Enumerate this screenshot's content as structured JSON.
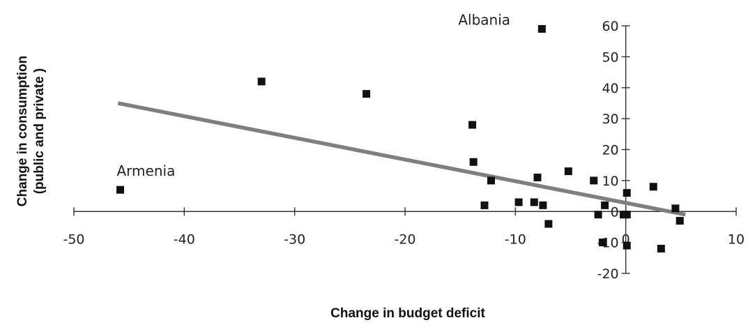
{
  "chart_data": {
    "type": "scatter",
    "xlabel": "Change in budget deficit",
    "ylabel_lines": [
      "Change in consumption",
      "(public and private )"
    ],
    "xlim": [
      -50,
      10
    ],
    "ylim": [
      -20,
      60
    ],
    "xticks": [
      -50,
      -40,
      -30,
      -20,
      -10,
      0,
      10
    ],
    "yticks": [
      -20,
      -10,
      0,
      10,
      20,
      30,
      40,
      50,
      60
    ],
    "xtick_labels": [
      "-50",
      "-40",
      "-30",
      "-20",
      "-10",
      "0",
      "10"
    ],
    "ytick_labels": [
      "-20",
      "-10",
      "0",
      "10",
      "20",
      "30",
      "40",
      "50",
      "60"
    ],
    "points": [
      {
        "x": -45.8,
        "y": 7
      },
      {
        "x": -33,
        "y": 42
      },
      {
        "x": -23.5,
        "y": 38
      },
      {
        "x": -7.6,
        "y": 59
      },
      {
        "x": -13.9,
        "y": 28
      },
      {
        "x": -13.8,
        "y": 16
      },
      {
        "x": -12.2,
        "y": 10
      },
      {
        "x": -12.8,
        "y": 2
      },
      {
        "x": -9.7,
        "y": 3
      },
      {
        "x": -8.3,
        "y": 3
      },
      {
        "x": -8,
        "y": 11
      },
      {
        "x": -7.5,
        "y": 2
      },
      {
        "x": -7,
        "y": -4
      },
      {
        "x": -5.2,
        "y": 13
      },
      {
        "x": -2.9,
        "y": 10
      },
      {
        "x": -2.5,
        "y": -1
      },
      {
        "x": -2.1,
        "y": -10
      },
      {
        "x": -1.9,
        "y": 2
      },
      {
        "x": -0.2,
        "y": -1
      },
      {
        "x": 0.1,
        "y": 6
      },
      {
        "x": 0.1,
        "y": -1
      },
      {
        "x": 0.1,
        "y": -11
      },
      {
        "x": 2.5,
        "y": 8
      },
      {
        "x": 3.2,
        "y": -12
      },
      {
        "x": 4.5,
        "y": 1
      },
      {
        "x": 4.9,
        "y": -3
      }
    ],
    "trendline": {
      "x": [
        -46,
        5.4
      ],
      "y": [
        35,
        -1
      ]
    },
    "annotations": [
      {
        "text": "Albania",
        "x": -7.6,
        "y": 59
      },
      {
        "text": "Armenia",
        "x": -45.8,
        "y": 7
      }
    ],
    "grid": false,
    "legend": "none"
  }
}
